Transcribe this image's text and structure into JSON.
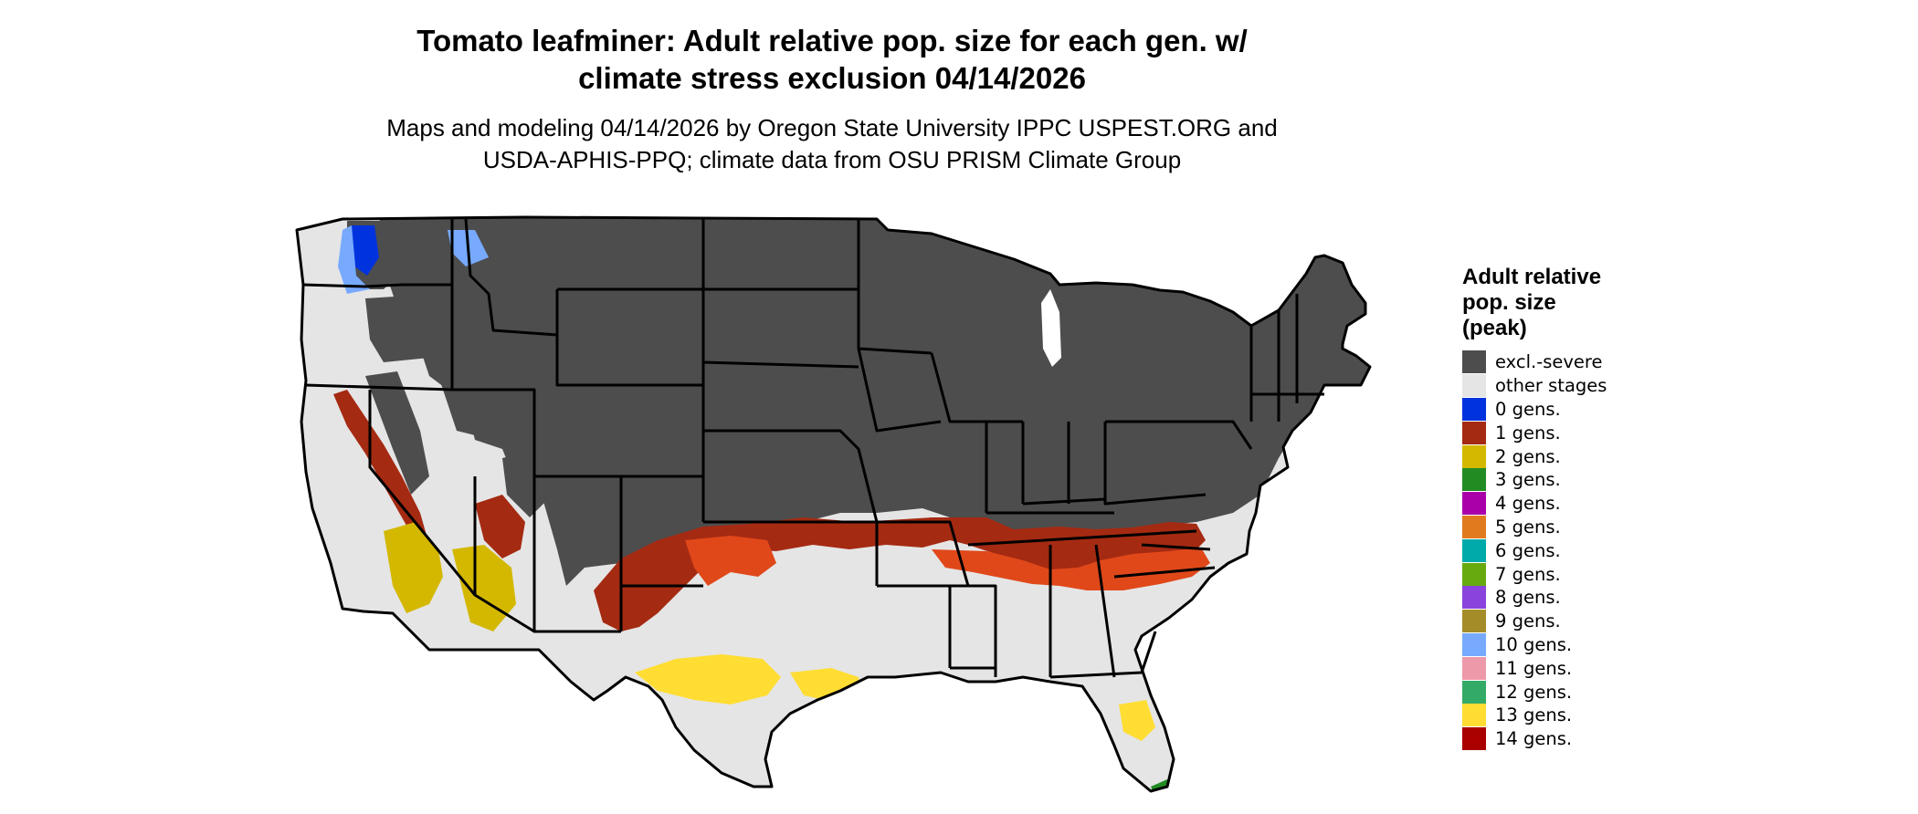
{
  "title_lines": [
    "Tomato leafminer: Adult relative pop. size for each gen. w/",
    "climate stress exclusion 04/14/2026"
  ],
  "subtitle_lines": [
    "Maps and modeling 04/14/2026 by Oregon State University IPPC USPEST.ORG and",
    "USDA-APHIS-PPQ; climate data from OSU PRISM Climate Group"
  ],
  "legend": {
    "title_lines": [
      "Adult relative",
      "pop. size",
      "(peak)"
    ],
    "items": [
      {
        "label": "excl.-severe",
        "color": "#4d4d4d"
      },
      {
        "label": "other stages",
        "color": "#e5e5e5"
      },
      {
        "label": "0 gens.",
        "color": "#0033dd"
      },
      {
        "label": "1 gens.",
        "color": "#a52a12"
      },
      {
        "label": "2 gens.",
        "color": "#d4b800"
      },
      {
        "label": "3 gens.",
        "color": "#228b22"
      },
      {
        "label": "4 gens.",
        "color": "#aa00aa"
      },
      {
        "label": "5 gens.",
        "color": "#e07a1f"
      },
      {
        "label": "6 gens.",
        "color": "#00aaaa"
      },
      {
        "label": "7 gens.",
        "color": "#66aa10"
      },
      {
        "label": "8 gens.",
        "color": "#8a44dd"
      },
      {
        "label": "9 gens.",
        "color": "#a48c28"
      },
      {
        "label": "10 gens.",
        "color": "#77aaff"
      },
      {
        "label": "11 gens.",
        "color": "#ee99aa"
      },
      {
        "label": "12 gens.",
        "color": "#33aa66"
      },
      {
        "label": "13 gens.",
        "color": "#ffdd33"
      },
      {
        "label": "14 gens.",
        "color": "#aa0000"
      }
    ]
  },
  "map": {
    "colors": {
      "excluded": "#4d4d4d",
      "other": "#e5e5e5",
      "gen0": "#0033dd",
      "gen1": "#a52a12",
      "gen1_orange": "#e0481a",
      "gen2": "#d4b800",
      "gen3": "#228b22",
      "gen10": "#77aaff",
      "gen13": "#ffdd33",
      "border": "#000000",
      "lake": "#ffffff"
    }
  }
}
